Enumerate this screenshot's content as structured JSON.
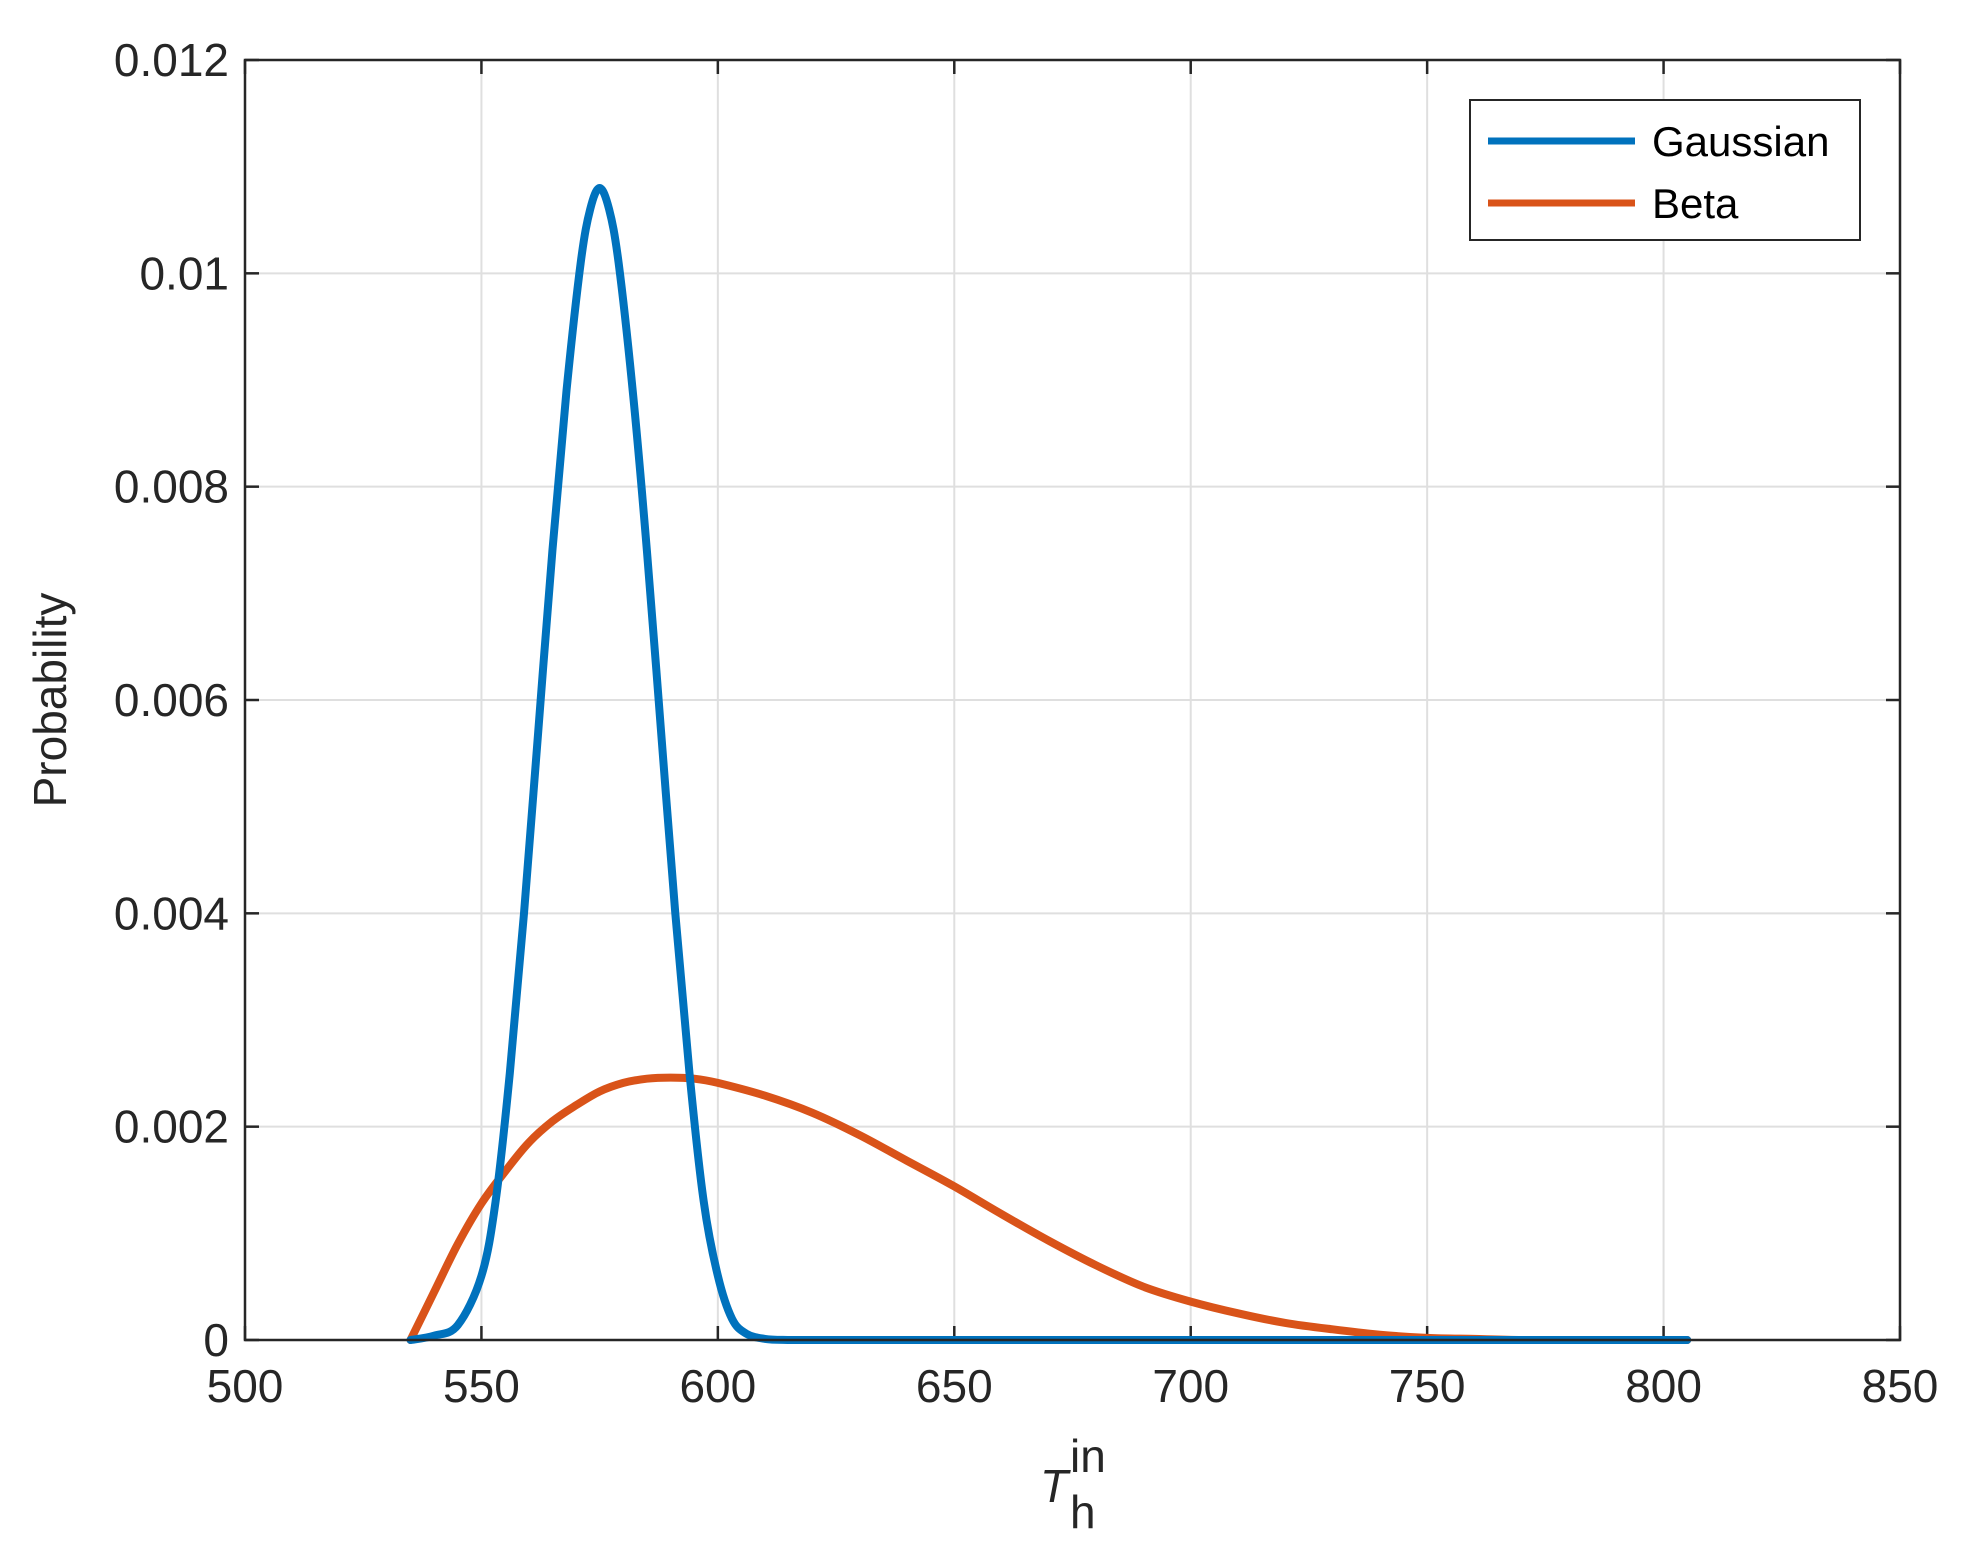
{
  "chart_data": {
    "type": "line",
    "title": "",
    "xlabel": {
      "main": "T",
      "sub": "h",
      "sup": "in"
    },
    "ylabel": "Probability",
    "xlim": [
      500,
      850
    ],
    "ylim": [
      0,
      0.012
    ],
    "xticks": [
      500,
      550,
      600,
      650,
      700,
      750,
      800,
      850
    ],
    "xtick_labels": [
      "500",
      "550",
      "600",
      "650",
      "700",
      "750",
      "800",
      "850"
    ],
    "yticks": [
      0,
      0.002,
      0.004,
      0.006,
      0.008,
      0.01,
      0.012
    ],
    "ytick_labels": [
      "0",
      "0.002",
      "0.004",
      "0.006",
      "0.008",
      "0.01",
      "0.012"
    ],
    "grid": true,
    "legend_position": "top-right",
    "series": [
      {
        "name": "Gaussian",
        "color": "#0072BD",
        "x": [
          535,
          540,
          545,
          550,
          553,
          556,
          559,
          562,
          565,
          568,
          571,
          573,
          575,
          577,
          579,
          582,
          585,
          588,
          591,
          594,
          597,
          600,
          603,
          606,
          610,
          615,
          620,
          650,
          700,
          750,
          805
        ],
        "y": [
          0.0,
          4e-05,
          0.00014,
          0.0006,
          0.0013,
          0.0025,
          0.004,
          0.0057,
          0.0074,
          0.0089,
          0.0101,
          0.0106,
          0.0108,
          0.0106,
          0.0101,
          0.0089,
          0.0074,
          0.0057,
          0.004,
          0.0025,
          0.0013,
          0.0006,
          0.0002,
          6e-05,
          1e-05,
          0.0,
          0.0,
          0.0,
          0.0,
          0.0,
          0.0
        ]
      },
      {
        "name": "Beta",
        "color": "#D95319",
        "x": [
          535,
          540,
          545,
          550,
          555,
          560,
          565,
          570,
          575,
          580,
          585,
          590,
          595,
          600,
          610,
          620,
          630,
          640,
          650,
          660,
          670,
          680,
          690,
          700,
          710,
          720,
          730,
          740,
          750,
          760,
          770,
          780,
          790,
          805
        ],
        "y": [
          0.0,
          0.00045,
          0.0009,
          0.00128,
          0.00158,
          0.00185,
          0.00205,
          0.0022,
          0.00233,
          0.00241,
          0.00245,
          0.00246,
          0.00245,
          0.00241,
          0.00229,
          0.00213,
          0.00192,
          0.00168,
          0.00144,
          0.00118,
          0.00093,
          0.0007,
          0.0005,
          0.00036,
          0.00025,
          0.00016,
          0.0001,
          5e-05,
          2e-05,
          1e-05,
          0.0,
          0.0,
          0.0,
          0.0
        ]
      }
    ]
  }
}
